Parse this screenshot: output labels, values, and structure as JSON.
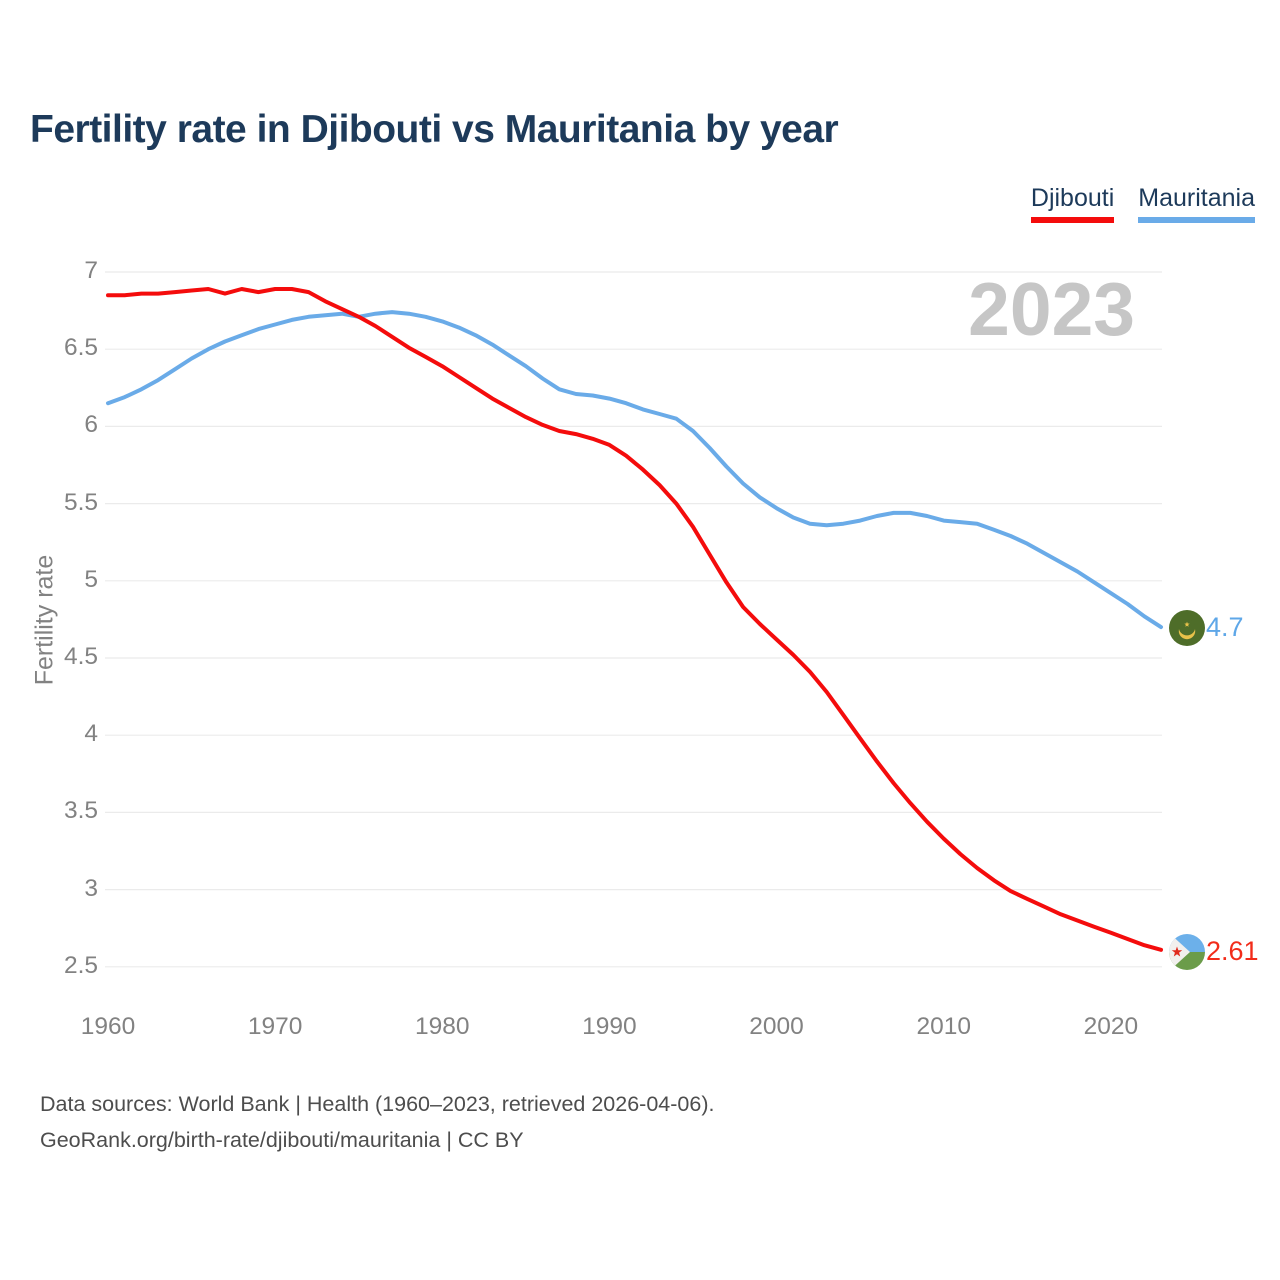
{
  "title": "Fertility rate in Djibouti vs Mauritania by year",
  "watermark_year": "2023",
  "legend": {
    "items": [
      {
        "label": "Djibouti",
        "color": "#f40c0c"
      },
      {
        "label": "Mauritania",
        "color": "#6aabe8"
      }
    ]
  },
  "y_axis": {
    "label": "Fertility rate",
    "ticks": [
      7,
      6.5,
      6,
      5.5,
      5,
      4.5,
      4,
      3.5,
      3,
      2.5
    ]
  },
  "x_axis": {
    "ticks": [
      1960,
      1970,
      1980,
      1990,
      2000,
      2010,
      2020
    ]
  },
  "end_labels": {
    "mauritania": {
      "value": "4.7",
      "flag": "mauritania-flag-icon"
    },
    "djibouti": {
      "value": "2.61",
      "flag": "djibouti-flag-icon"
    }
  },
  "chart_data": {
    "type": "line",
    "title": "Fertility rate in Djibouti vs Mauritania by year",
    "xlabel": "",
    "ylabel": "Fertility rate",
    "xlim": [
      1960,
      2023
    ],
    "ylim": [
      2.5,
      7
    ],
    "grid": "horizontal",
    "legend_position": "top-right",
    "x": [
      1960,
      1961,
      1962,
      1963,
      1964,
      1965,
      1966,
      1967,
      1968,
      1969,
      1970,
      1971,
      1972,
      1973,
      1974,
      1975,
      1976,
      1977,
      1978,
      1979,
      1980,
      1981,
      1982,
      1983,
      1984,
      1985,
      1986,
      1987,
      1988,
      1989,
      1990,
      1991,
      1992,
      1993,
      1994,
      1995,
      1996,
      1997,
      1998,
      1999,
      2000,
      2001,
      2002,
      2003,
      2004,
      2005,
      2006,
      2007,
      2008,
      2009,
      2010,
      2011,
      2012,
      2013,
      2014,
      2015,
      2016,
      2017,
      2018,
      2019,
      2020,
      2021,
      2022,
      2023
    ],
    "series": [
      {
        "name": "Djibouti",
        "color": "#f40c0c",
        "end_label": "2.61",
        "values": [
          6.85,
          6.85,
          6.86,
          6.86,
          6.87,
          6.88,
          6.89,
          6.86,
          6.89,
          6.87,
          6.89,
          6.89,
          6.87,
          6.81,
          6.76,
          6.71,
          6.65,
          6.58,
          6.51,
          6.45,
          6.39,
          6.32,
          6.25,
          6.18,
          6.12,
          6.06,
          6.01,
          5.97,
          5.95,
          5.92,
          5.88,
          5.81,
          5.72,
          5.62,
          5.5,
          5.35,
          5.17,
          4.99,
          4.83,
          4.72,
          4.62,
          4.52,
          4.41,
          4.28,
          4.13,
          3.98,
          3.83,
          3.69,
          3.56,
          3.44,
          3.33,
          3.23,
          3.14,
          3.06,
          2.99,
          2.94,
          2.89,
          2.84,
          2.8,
          2.76,
          2.72,
          2.68,
          2.64,
          2.61
        ]
      },
      {
        "name": "Mauritania",
        "color": "#6aabe8",
        "end_label": "4.7",
        "values": [
          6.15,
          6.19,
          6.24,
          6.3,
          6.37,
          6.44,
          6.5,
          6.55,
          6.59,
          6.63,
          6.66,
          6.69,
          6.71,
          6.72,
          6.73,
          6.71,
          6.73,
          6.74,
          6.73,
          6.71,
          6.68,
          6.64,
          6.59,
          6.53,
          6.46,
          6.39,
          6.31,
          6.24,
          6.21,
          6.2,
          6.18,
          6.15,
          6.11,
          6.08,
          6.05,
          5.97,
          5.86,
          5.74,
          5.63,
          5.54,
          5.47,
          5.41,
          5.37,
          5.36,
          5.37,
          5.39,
          5.42,
          5.44,
          5.44,
          5.42,
          5.39,
          5.38,
          5.37,
          5.33,
          5.29,
          5.24,
          5.18,
          5.12,
          5.06,
          4.99,
          4.92,
          4.85,
          4.77,
          4.7
        ]
      }
    ]
  },
  "footer": {
    "line1": "Data sources: World Bank | Health (1960–2023, retrieved 2026-04-06).",
    "line2": "GeoRank.org/birth-rate/djibouti/mauritania | CC BY"
  }
}
